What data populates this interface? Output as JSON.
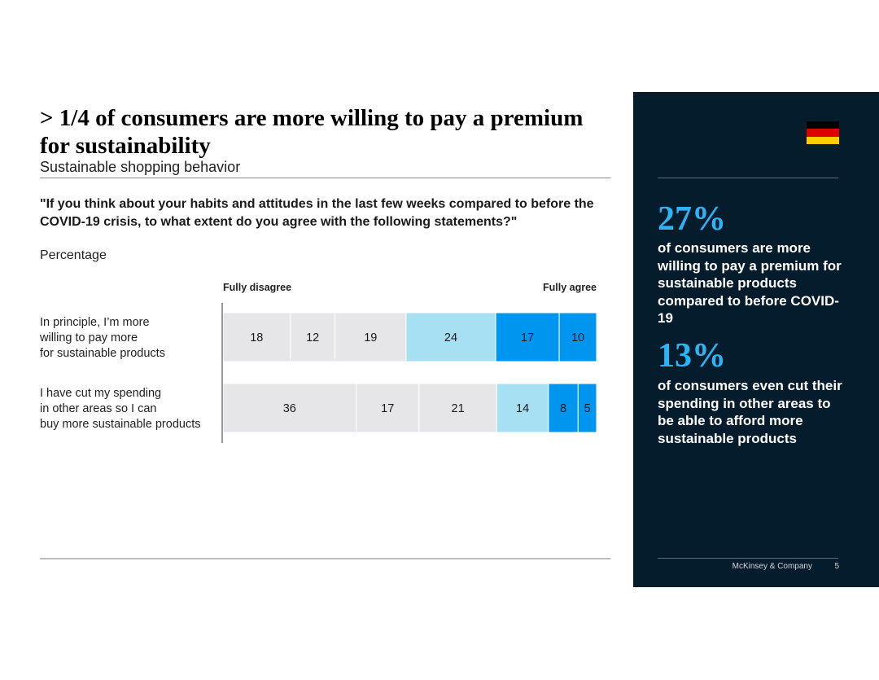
{
  "header": {
    "title": "> 1/4 of consumers are more willing to pay a premium for sustainability",
    "subtitle": "Sustainable shopping behavior"
  },
  "question": {
    "text": "\"If you think about your habits and attitudes in the last few weeks compared to before the COVID-19 crisis, to what extent do you agree with the following statements?\"",
    "unit": "Percentage"
  },
  "chart_data": {
    "type": "bar",
    "orientation": "horizontal-stacked",
    "scale_left_label": "Fully disagree",
    "scale_right_label": "Fully agree",
    "categories": [
      "In principle, I’m more\nwilling to pay more\nfor sustainable products",
      "I have cut my spending\nin other areas so I can\nbuy more sustainable products"
    ],
    "series": [
      {
        "name": "Level 1 (Fully disagree)",
        "color": "#e6e6e8",
        "values": [
          18,
          36
        ]
      },
      {
        "name": "Level 2",
        "color": "#e6e6e8",
        "values": [
          12,
          17
        ]
      },
      {
        "name": "Level 3",
        "color": "#e6e6e8",
        "values": [
          19,
          21
        ]
      },
      {
        "name": "Level 4",
        "color": "#a8e0f3",
        "values": [
          24,
          14
        ]
      },
      {
        "name": "Level 5",
        "color": "#0096f0",
        "values": [
          17,
          8
        ]
      },
      {
        "name": "Level 6 (Fully agree)",
        "color": "#0096f0",
        "values": [
          10,
          5
        ]
      }
    ]
  },
  "sidebar": {
    "stat1_value": "27%",
    "stat1_text": "of consumers are more willing to pay a premium for sustainable products compared to before COVID-19",
    "stat2_value": "13%",
    "stat2_text": "of consumers even cut their spending in other areas to be able to afford more sustainable products",
    "flag_colors": [
      "#000000",
      "#dd0000",
      "#ffce00"
    ],
    "brand": "McKinsey & Company",
    "page_number": "5"
  }
}
